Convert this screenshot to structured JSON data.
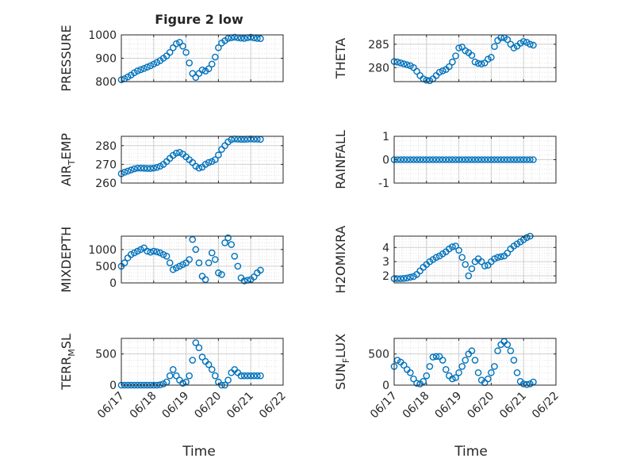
{
  "figure": {
    "title": "Figure 2 low",
    "x_label": "Time",
    "x_ticks": [
      "06/17",
      "06/18",
      "06/19",
      "06/20",
      "06/21",
      "06/22"
    ],
    "marker_color": "#0072BD",
    "grid_color": "#dcdcdc",
    "axis_color": "#262626"
  },
  "chart_data": [
    {
      "type": "scatter",
      "ylabel": "PRESSURE",
      "ylim": [
        800,
        1000
      ],
      "yticks": [
        800,
        900,
        1000
      ],
      "grid": true,
      "x_unit": "days since 06/17 00:00",
      "x": [
        0.0,
        0.1,
        0.2,
        0.3,
        0.4,
        0.5,
        0.6,
        0.7,
        0.8,
        0.9,
        1.0,
        1.1,
        1.2,
        1.3,
        1.4,
        1.5,
        1.6,
        1.7,
        1.8,
        1.9,
        2.0,
        2.1,
        2.2,
        2.3,
        2.4,
        2.5,
        2.6,
        2.7,
        2.8,
        2.9,
        3.0,
        3.1,
        3.2,
        3.3,
        3.4,
        3.5,
        3.6,
        3.7,
        3.8,
        3.9,
        4.0,
        4.1,
        4.2,
        4.3
      ],
      "y": [
        808,
        812,
        820,
        828,
        838,
        846,
        851,
        856,
        862,
        868,
        875,
        882,
        890,
        900,
        910,
        925,
        945,
        962,
        968,
        952,
        925,
        880,
        835,
        818,
        835,
        850,
        845,
        855,
        875,
        905,
        945,
        965,
        975,
        985,
        988,
        990,
        988,
        986,
        985,
        988,
        990,
        987,
        985,
        984
      ]
    },
    {
      "type": "scatter",
      "ylabel": "THETA",
      "ylim": [
        277,
        287
      ],
      "yticks": [
        280,
        285
      ],
      "grid": true,
      "x": [
        0.0,
        0.1,
        0.2,
        0.3,
        0.4,
        0.5,
        0.6,
        0.7,
        0.8,
        0.9,
        1.0,
        1.1,
        1.2,
        1.3,
        1.4,
        1.5,
        1.6,
        1.7,
        1.8,
        1.9,
        2.0,
        2.1,
        2.2,
        2.3,
        2.4,
        2.5,
        2.6,
        2.7,
        2.8,
        2.9,
        3.0,
        3.1,
        3.2,
        3.3,
        3.4,
        3.5,
        3.6,
        3.7,
        3.8,
        3.9,
        4.0,
        4.1,
        4.2,
        4.3
      ],
      "y": [
        281.3,
        281.2,
        281.0,
        280.8,
        280.6,
        280.4,
        280.0,
        279.2,
        278.3,
        277.6,
        277.3,
        277.2,
        277.6,
        278.3,
        279.0,
        279.3,
        279.6,
        280.2,
        281.2,
        282.5,
        284.2,
        284.4,
        283.6,
        283.2,
        282.6,
        281.2,
        280.9,
        280.8,
        281.0,
        281.8,
        282.2,
        284.5,
        285.8,
        286.4,
        286.4,
        286.0,
        285.0,
        284.2,
        284.6,
        285.2,
        285.6,
        285.4,
        285.0,
        284.8
      ]
    },
    {
      "type": "scatter",
      "ylabel": "AIR_TEMP",
      "ylim": [
        260,
        285
      ],
      "yticks": [
        260,
        270,
        280
      ],
      "grid": true,
      "x": [
        0.0,
        0.1,
        0.2,
        0.3,
        0.4,
        0.5,
        0.6,
        0.7,
        0.8,
        0.9,
        1.0,
        1.1,
        1.2,
        1.3,
        1.4,
        1.5,
        1.6,
        1.7,
        1.8,
        1.9,
        2.0,
        2.1,
        2.2,
        2.3,
        2.4,
        2.5,
        2.6,
        2.7,
        2.8,
        2.9,
        3.0,
        3.1,
        3.2,
        3.3,
        3.4,
        3.5,
        3.6,
        3.7,
        3.8,
        3.9,
        4.0,
        4.1,
        4.2,
        4.3
      ],
      "y": [
        265.0,
        265.8,
        266.4,
        267.0,
        267.6,
        268.0,
        268.0,
        267.9,
        267.8,
        267.8,
        268.0,
        268.4,
        269.0,
        270.0,
        271.5,
        273.2,
        274.8,
        276.0,
        276.4,
        275.5,
        274.0,
        272.5,
        271.0,
        269.0,
        268.0,
        268.5,
        270.0,
        271.0,
        271.5,
        272.5,
        275.0,
        278.0,
        280.0,
        282.0,
        283.2,
        283.6,
        283.5,
        283.4,
        283.4,
        283.5,
        283.6,
        283.5,
        283.5,
        283.4
      ]
    },
    {
      "type": "scatter",
      "ylabel": "RAINFALL",
      "ylim": [
        -1,
        1
      ],
      "yticks": [
        -1,
        0,
        1
      ],
      "grid": true,
      "x": [
        0.0,
        0.1,
        0.2,
        0.3,
        0.4,
        0.5,
        0.6,
        0.7,
        0.8,
        0.9,
        1.0,
        1.1,
        1.2,
        1.3,
        1.4,
        1.5,
        1.6,
        1.7,
        1.8,
        1.9,
        2.0,
        2.1,
        2.2,
        2.3,
        2.4,
        2.5,
        2.6,
        2.7,
        2.8,
        2.9,
        3.0,
        3.1,
        3.2,
        3.3,
        3.4,
        3.5,
        3.6,
        3.7,
        3.8,
        3.9,
        4.0,
        4.1,
        4.2,
        4.3
      ],
      "y": [
        0,
        0,
        0,
        0,
        0,
        0,
        0,
        0,
        0,
        0,
        0,
        0,
        0,
        0,
        0,
        0,
        0,
        0,
        0,
        0,
        0,
        0,
        0,
        0,
        0,
        0,
        0,
        0,
        0,
        0,
        0,
        0,
        0,
        0,
        0,
        0,
        0,
        0,
        0,
        0,
        0,
        0,
        0,
        0
      ]
    },
    {
      "type": "scatter",
      "ylabel": "MIXDEPTH",
      "ylim": [
        0,
        1400
      ],
      "yticks": [
        0,
        500,
        1000
      ],
      "grid": true,
      "x": [
        0.0,
        0.1,
        0.2,
        0.3,
        0.4,
        0.5,
        0.6,
        0.7,
        0.8,
        0.9,
        1.0,
        1.1,
        1.2,
        1.3,
        1.4,
        1.5,
        1.6,
        1.7,
        1.8,
        1.9,
        2.0,
        2.1,
        2.2,
        2.3,
        2.4,
        2.5,
        2.6,
        2.7,
        2.8,
        2.9,
        3.0,
        3.1,
        3.2,
        3.3,
        3.4,
        3.5,
        3.6,
        3.7,
        3.8,
        3.9,
        4.0,
        4.1,
        4.2,
        4.3
      ],
      "y": [
        500,
        600,
        750,
        850,
        900,
        950,
        1000,
        1050,
        950,
        920,
        950,
        930,
        900,
        850,
        800,
        600,
        400,
        450,
        500,
        550,
        600,
        700,
        1300,
        1000,
        600,
        200,
        100,
        600,
        900,
        700,
        300,
        250,
        1200,
        1350,
        1150,
        800,
        500,
        150,
        60,
        80,
        100,
        180,
        300,
        380
      ]
    },
    {
      "type": "scatter",
      "ylabel": "H2OMIXRA",
      "ylim": [
        1.5,
        4.8
      ],
      "yticks": [
        2,
        3,
        4
      ],
      "grid": true,
      "x": [
        0.0,
        0.1,
        0.2,
        0.3,
        0.4,
        0.5,
        0.6,
        0.7,
        0.8,
        0.9,
        1.0,
        1.1,
        1.2,
        1.3,
        1.4,
        1.5,
        1.6,
        1.7,
        1.8,
        1.9,
        2.0,
        2.1,
        2.2,
        2.3,
        2.4,
        2.5,
        2.6,
        2.7,
        2.8,
        2.9,
        3.0,
        3.1,
        3.2,
        3.3,
        3.4,
        3.5,
        3.6,
        3.7,
        3.8,
        3.9,
        4.0,
        4.1,
        4.2,
        4.3
      ],
      "y": [
        1.8,
        1.8,
        1.8,
        1.82,
        1.85,
        1.9,
        1.95,
        2.1,
        2.35,
        2.6,
        2.8,
        3.0,
        3.15,
        3.3,
        3.4,
        3.55,
        3.7,
        3.9,
        4.05,
        4.1,
        3.8,
        3.3,
        2.8,
        2.0,
        2.5,
        3.0,
        3.2,
        3.0,
        2.7,
        2.75,
        3.0,
        3.2,
        3.3,
        3.35,
        3.4,
        3.6,
        3.9,
        4.1,
        4.25,
        4.4,
        4.55,
        4.7,
        4.8,
        4.85
      ]
    },
    {
      "type": "scatter",
      "ylabel": "TERR_MSL",
      "ylim": [
        0,
        750
      ],
      "yticks": [
        0,
        500
      ],
      "grid": true,
      "x": [
        0.0,
        0.1,
        0.2,
        0.3,
        0.4,
        0.5,
        0.6,
        0.7,
        0.8,
        0.9,
        1.0,
        1.1,
        1.2,
        1.3,
        1.4,
        1.5,
        1.6,
        1.7,
        1.8,
        1.9,
        2.0,
        2.1,
        2.2,
        2.3,
        2.4,
        2.5,
        2.6,
        2.7,
        2.8,
        2.9,
        3.0,
        3.1,
        3.2,
        3.3,
        3.4,
        3.5,
        3.6,
        3.7,
        3.8,
        3.9,
        4.0,
        4.1,
        4.2,
        4.3
      ],
      "y": [
        0,
        0,
        0,
        0,
        0,
        0,
        0,
        0,
        0,
        0,
        0,
        0,
        5,
        20,
        50,
        150,
        250,
        150,
        80,
        30,
        50,
        150,
        400,
        680,
        600,
        450,
        380,
        330,
        250,
        150,
        50,
        0,
        0,
        80,
        200,
        250,
        200,
        150,
        150,
        150,
        150,
        150,
        150,
        150
      ]
    },
    {
      "type": "scatter",
      "ylabel": "SUN_FLUX",
      "ylim": [
        0,
        750
      ],
      "yticks": [
        0,
        500
      ],
      "grid": true,
      "x": [
        0.0,
        0.1,
        0.2,
        0.3,
        0.4,
        0.5,
        0.6,
        0.7,
        0.8,
        0.9,
        1.0,
        1.1,
        1.2,
        1.3,
        1.4,
        1.5,
        1.6,
        1.7,
        1.8,
        1.9,
        2.0,
        2.1,
        2.2,
        2.3,
        2.4,
        2.5,
        2.6,
        2.7,
        2.8,
        2.9,
        3.0,
        3.1,
        3.2,
        3.3,
        3.4,
        3.5,
        3.6,
        3.7,
        3.8,
        3.9,
        4.0,
        4.1,
        4.2,
        4.3
      ],
      "y": [
        300,
        400,
        370,
        320,
        250,
        200,
        100,
        30,
        20,
        60,
        150,
        300,
        450,
        460,
        460,
        400,
        250,
        150,
        100,
        120,
        200,
        300,
        400,
        500,
        550,
        400,
        200,
        80,
        40,
        100,
        200,
        300,
        550,
        650,
        700,
        650,
        550,
        400,
        200,
        60,
        20,
        10,
        20,
        50
      ]
    }
  ]
}
